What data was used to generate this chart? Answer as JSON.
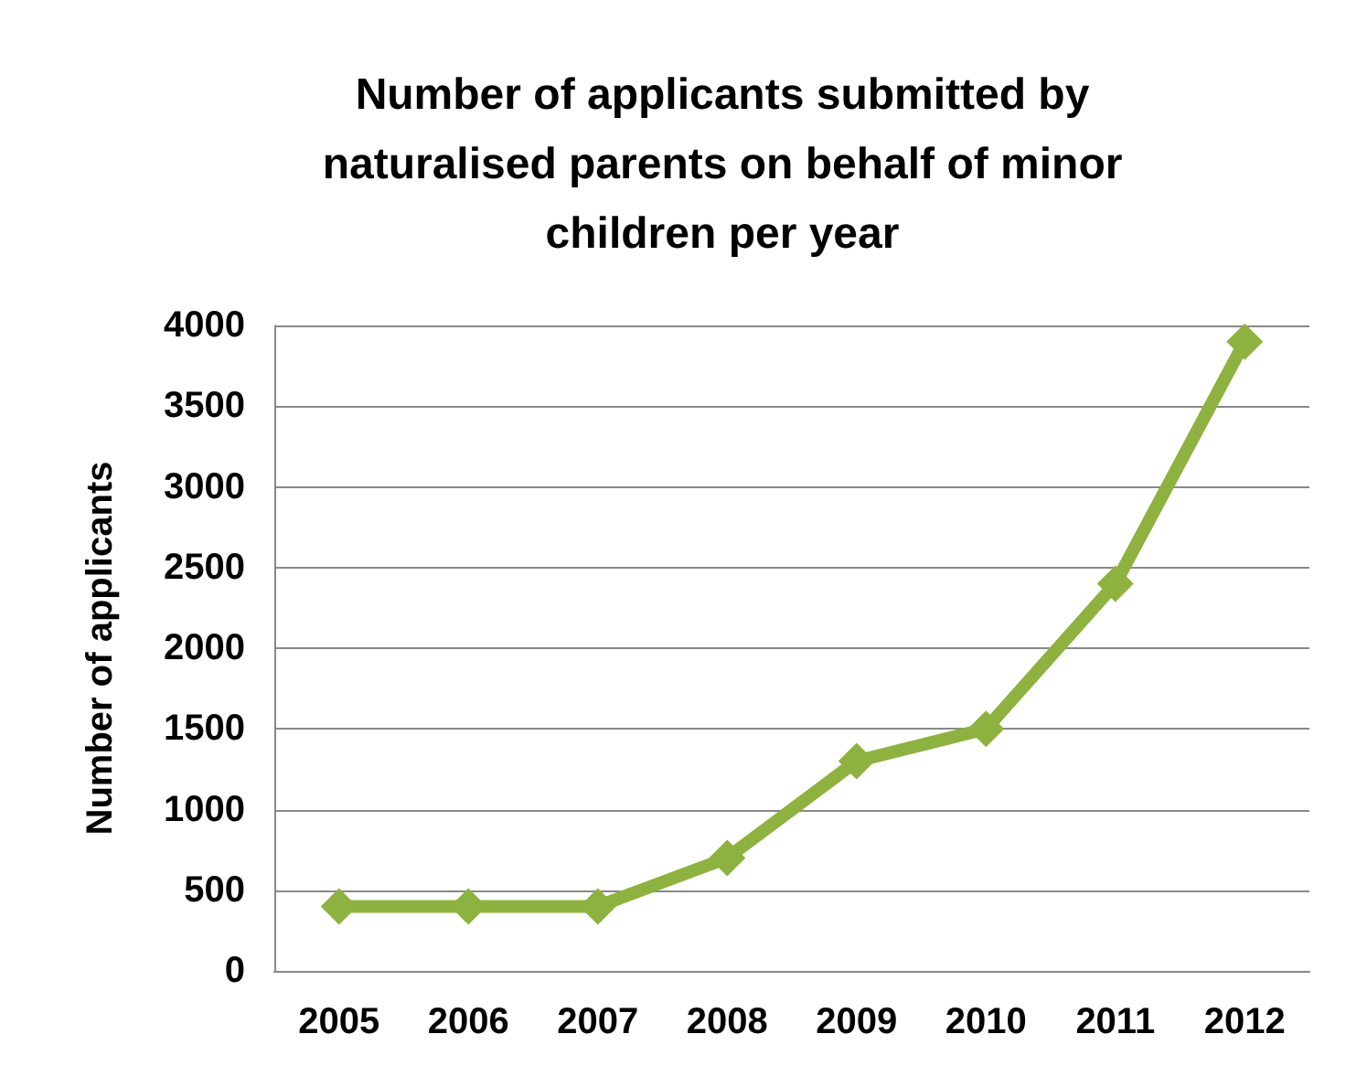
{
  "chart_data": {
    "type": "line",
    "title": "Number of applicants submitted by naturalised parents on behalf of minor children per year",
    "ylabel": "Number of applicants",
    "categories": [
      "2005",
      "2006",
      "2007",
      "2008",
      "2009",
      "2010",
      "2011",
      "2012"
    ],
    "series": [
      {
        "color": "#8db23f",
        "values": [
          400,
          400,
          400,
          700,
          1300,
          1500,
          2400,
          3900
        ]
      }
    ],
    "ylim": [
      0,
      4000
    ],
    "yticks": [
      0,
      500,
      1000,
      1500,
      2000,
      2500,
      3000,
      3500,
      4000
    ],
    "grid": "y",
    "marker": "diamond",
    "line_style": "solid"
  }
}
